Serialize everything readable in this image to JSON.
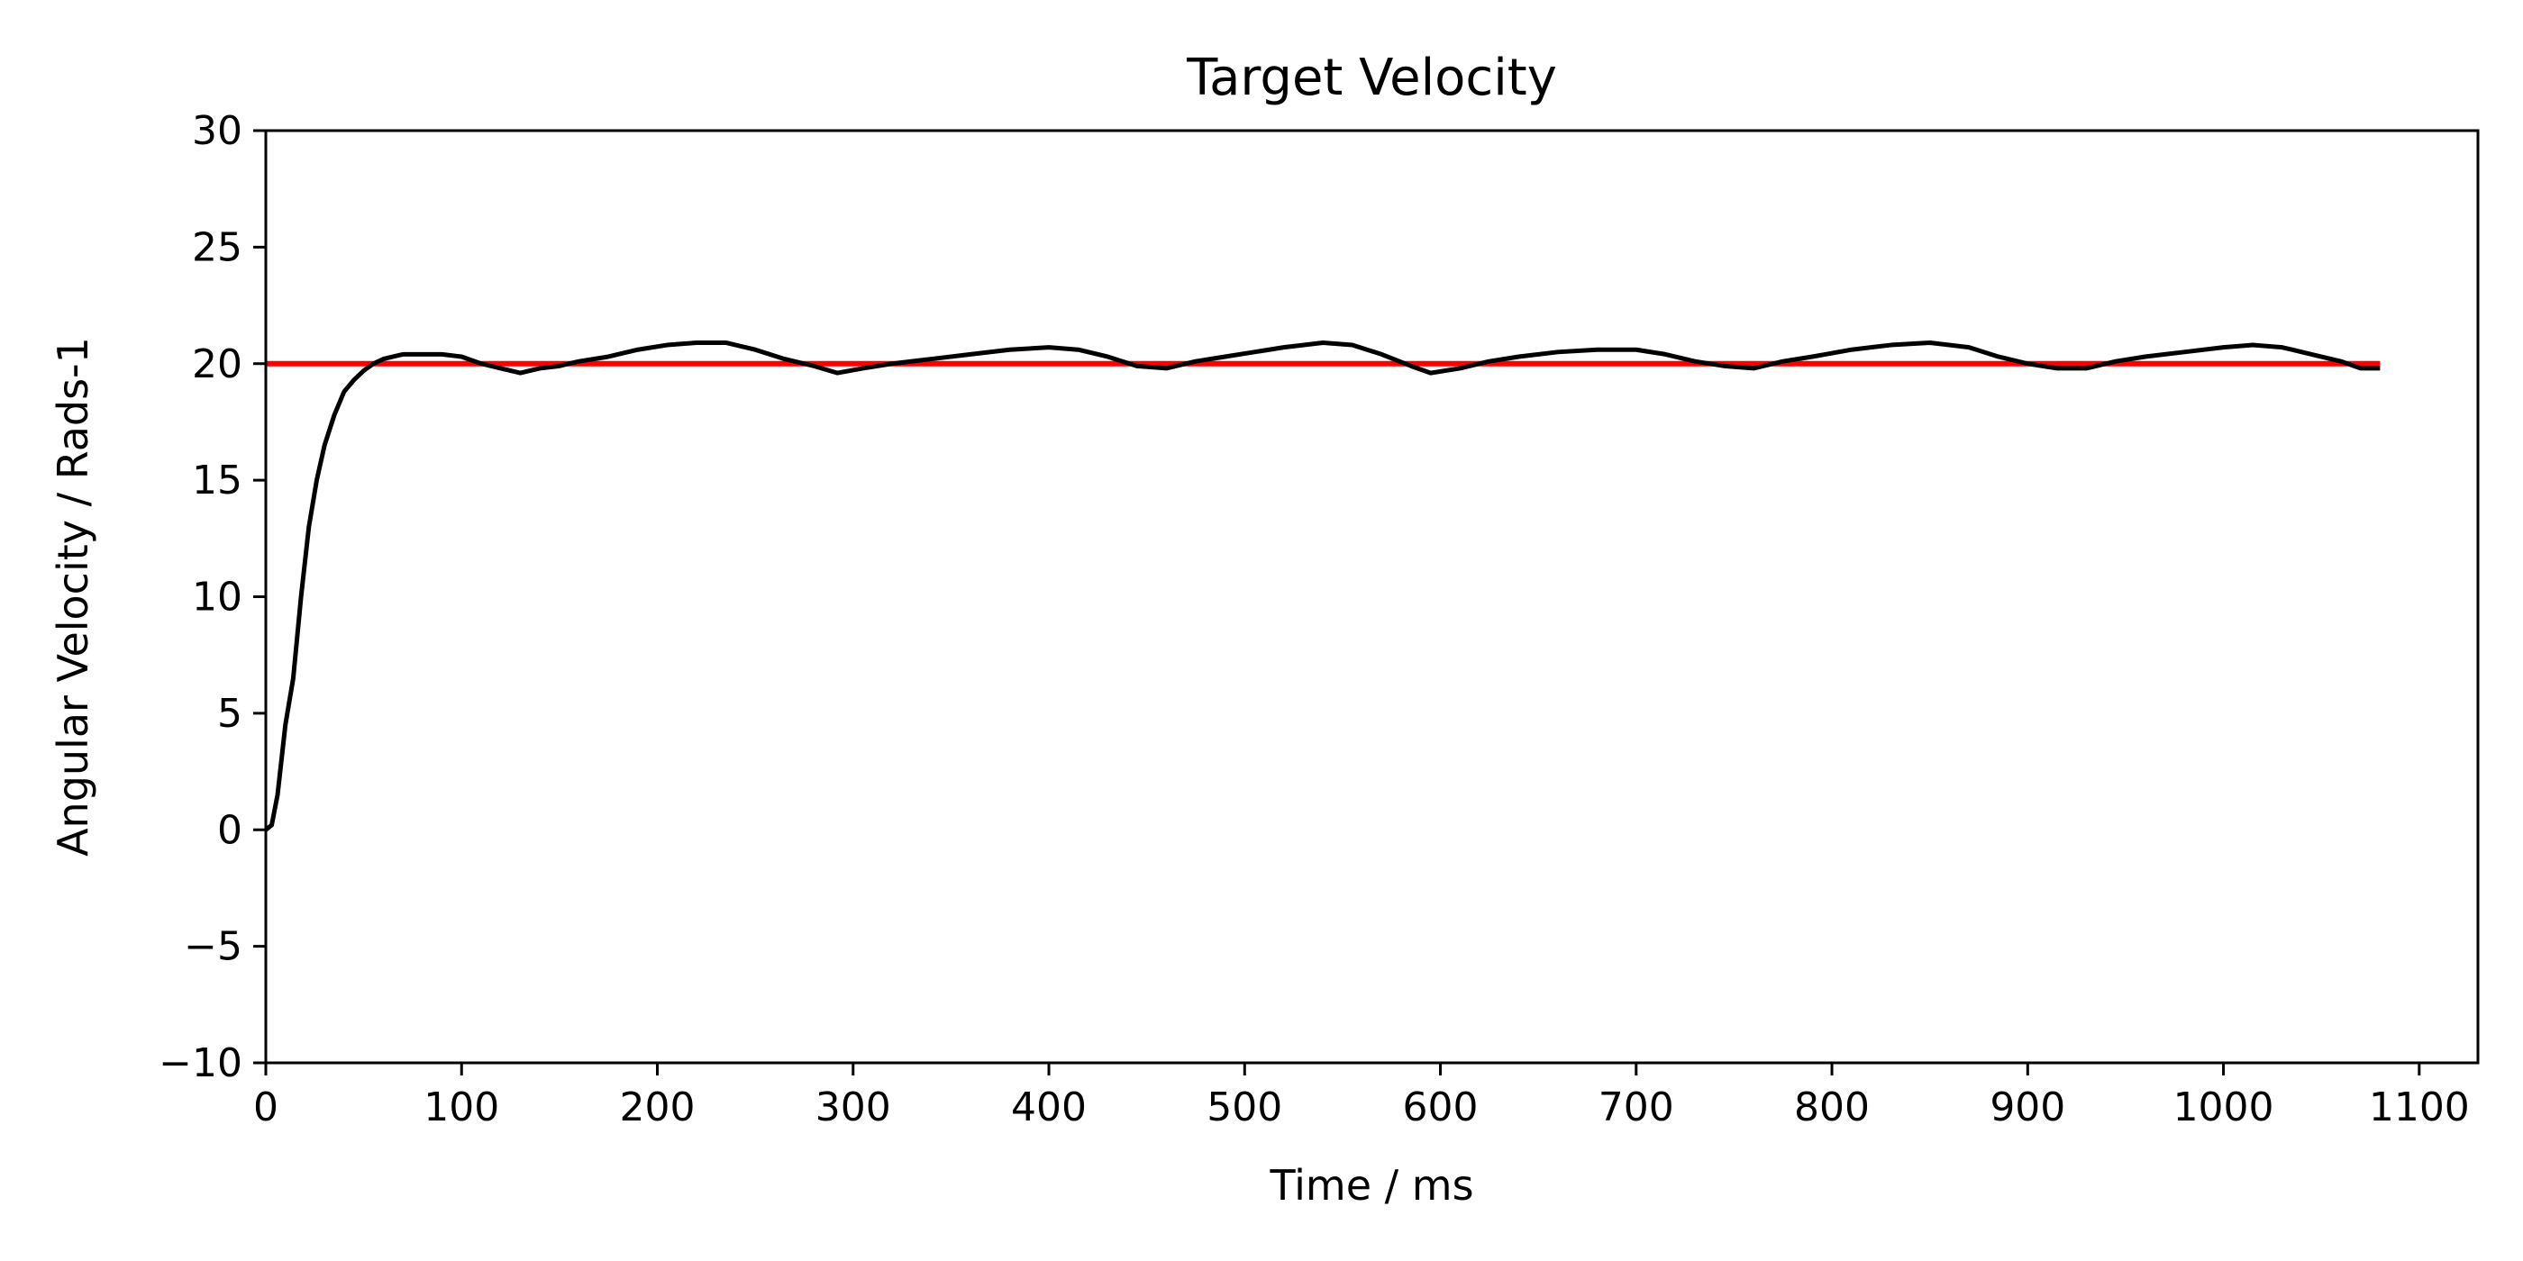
{
  "chart_data": {
    "type": "line",
    "title": "Target Velocity",
    "xlabel": "Time / ms",
    "ylabel": "Angular Velocity / Rads-1",
    "xlim": [
      0,
      1130
    ],
    "ylim": [
      -10,
      30
    ],
    "xticks": [
      0,
      100,
      200,
      300,
      400,
      500,
      600,
      700,
      800,
      900,
      1000,
      1100
    ],
    "yticks": [
      -10,
      -5,
      0,
      5,
      10,
      15,
      20,
      25,
      30
    ],
    "xtick_labels": [
      "0",
      "100",
      "200",
      "300",
      "400",
      "500",
      "600",
      "700",
      "800",
      "900",
      "1000",
      "1100"
    ],
    "ytick_labels": [
      "−10",
      "−5",
      "0",
      "5",
      "10",
      "15",
      "20",
      "25",
      "30"
    ],
    "grid": false,
    "series": [
      {
        "color": "#ff0000",
        "x": [
          0,
          1080
        ],
        "y": [
          20,
          20
        ]
      },
      {
        "color": "#000000",
        "x": [
          0,
          3,
          6,
          10,
          14,
          18,
          22,
          26,
          30,
          35,
          40,
          45,
          50,
          55,
          60,
          65,
          70,
          80,
          90,
          100,
          110,
          120,
          130,
          140,
          150,
          160,
          175,
          190,
          205,
          220,
          235,
          250,
          265,
          280,
          292,
          305,
          320,
          340,
          360,
          380,
          400,
          415,
          430,
          445,
          460,
          475,
          490,
          505,
          520,
          540,
          555,
          570,
          585,
          595,
          610,
          625,
          640,
          660,
          680,
          700,
          715,
          730,
          745,
          760,
          775,
          790,
          810,
          830,
          850,
          870,
          885,
          900,
          915,
          930,
          945,
          960,
          980,
          1000,
          1015,
          1030,
          1045,
          1060,
          1070,
          1080
        ],
        "y": [
          0,
          0.2,
          1.5,
          4.5,
          6.5,
          10.0,
          13.0,
          15.0,
          16.5,
          17.8,
          18.8,
          19.3,
          19.7,
          20.0,
          20.2,
          20.3,
          20.4,
          20.4,
          20.4,
          20.3,
          20.0,
          19.8,
          19.6,
          19.8,
          19.9,
          20.1,
          20.3,
          20.6,
          20.8,
          20.9,
          20.9,
          20.6,
          20.2,
          19.9,
          19.6,
          19.8,
          20.0,
          20.2,
          20.4,
          20.6,
          20.7,
          20.6,
          20.3,
          19.9,
          19.8,
          20.1,
          20.3,
          20.5,
          20.7,
          20.9,
          20.8,
          20.4,
          19.9,
          19.6,
          19.8,
          20.1,
          20.3,
          20.5,
          20.6,
          20.6,
          20.4,
          20.1,
          19.9,
          19.8,
          20.1,
          20.3,
          20.6,
          20.8,
          20.9,
          20.7,
          20.3,
          20.0,
          19.8,
          19.8,
          20.1,
          20.3,
          20.5,
          20.7,
          20.8,
          20.7,
          20.4,
          20.1,
          19.8,
          19.8
        ]
      }
    ]
  }
}
